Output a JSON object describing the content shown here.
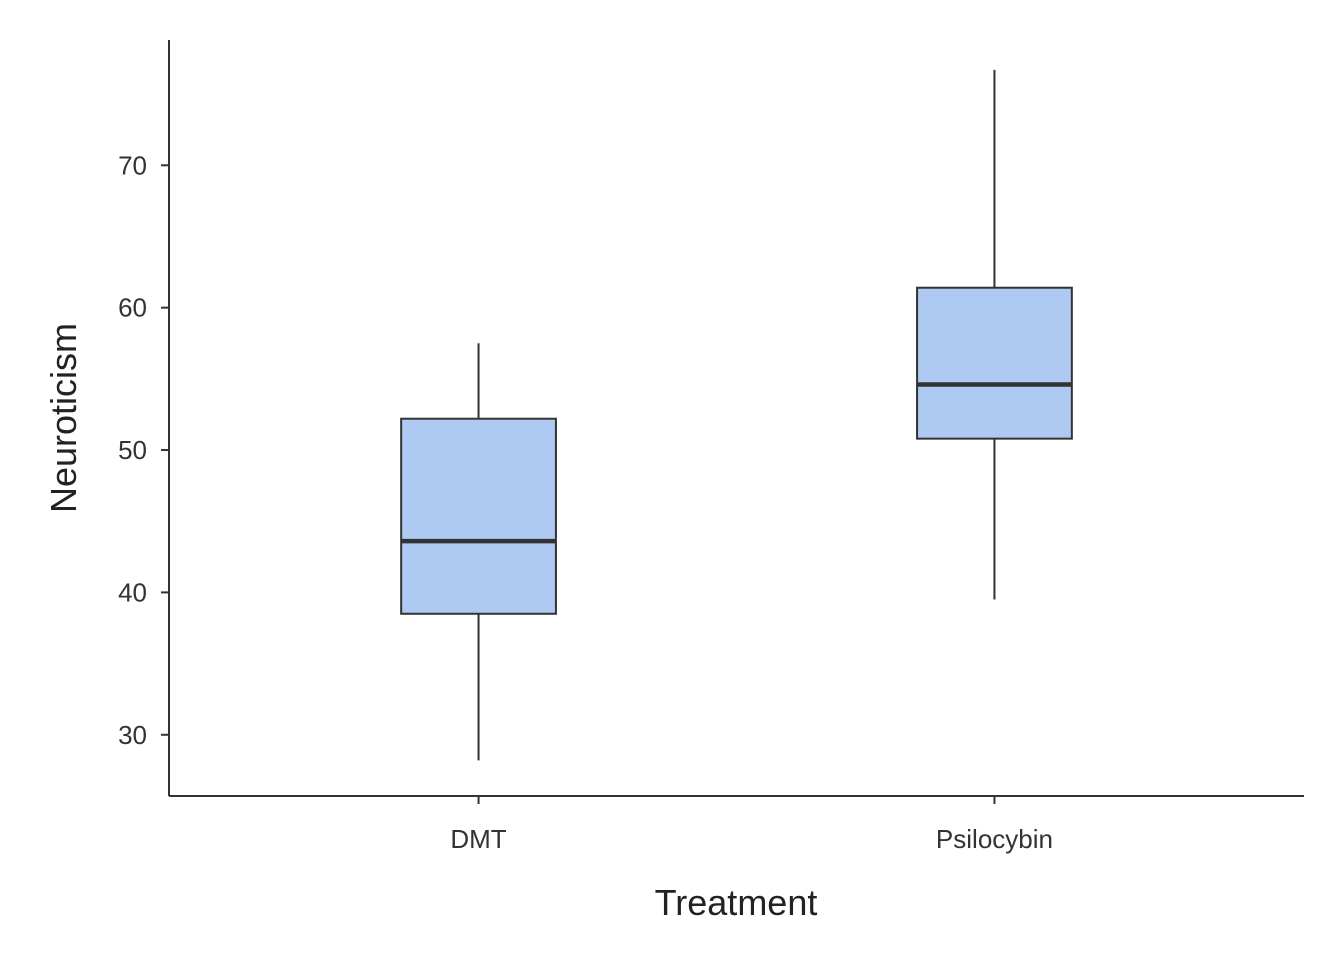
{
  "chart_data": {
    "type": "boxplot",
    "title": "",
    "xlabel": "Treatment",
    "ylabel": "Neuroticism",
    "categories": [
      "DMT",
      "Psilocybin"
    ],
    "boxes": [
      {
        "category": "DMT",
        "min": 28.2,
        "q1": 38.5,
        "median": 43.6,
        "q3": 52.2,
        "max": 57.5
      },
      {
        "category": "Psilocybin",
        "min": 39.5,
        "q1": 50.8,
        "median": 54.6,
        "q3": 61.4,
        "max": 76.7
      }
    ],
    "yticks": [
      30,
      40,
      50,
      60,
      70
    ],
    "ylim": [
      25.7,
      78.8
    ],
    "grid": false,
    "legend": "none",
    "colors": {
      "box_fill": "#aec9f2",
      "outline": "#333333"
    }
  }
}
